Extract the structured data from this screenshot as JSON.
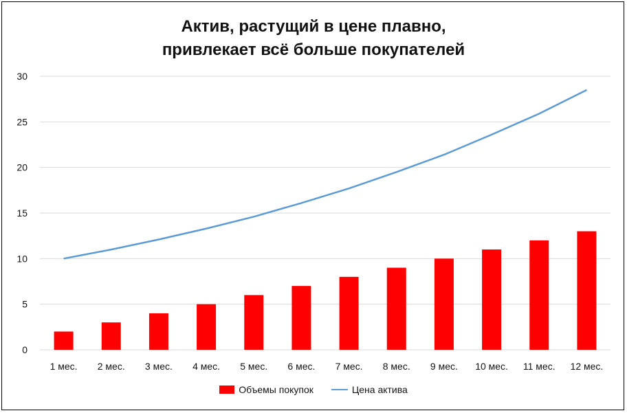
{
  "chart_data": {
    "type": "bar+line",
    "title": [
      "Актив, растущий в цене плавно,",
      "привлекает всё больше покупателей"
    ],
    "categories": [
      "1 мес.",
      "2 мес.",
      "3 мес.",
      "4 мес.",
      "5 мес.",
      "6 мес.",
      "7 мес.",
      "8 мес.",
      "9 мес.",
      "10 мес.",
      "11 мес.",
      "12 мес."
    ],
    "series": [
      {
        "name": "Объемы покупок",
        "type": "bar",
        "color": "#ff0000",
        "values": [
          2,
          3,
          4,
          5,
          6,
          7,
          8,
          9,
          10,
          11,
          12,
          13
        ]
      },
      {
        "name": "Цена актива",
        "type": "line",
        "color": "#5b9bd5",
        "values": [
          10.0,
          11.0,
          12.1,
          13.3,
          14.6,
          16.1,
          17.7,
          19.5,
          21.4,
          23.6,
          25.9,
          28.5
        ]
      }
    ],
    "ylim": [
      0,
      30
    ],
    "yticks": [
      "0",
      "5",
      "10",
      "15",
      "20",
      "25",
      "30"
    ],
    "xlabel": "",
    "ylabel": "",
    "grid": true,
    "legend_position": "bottom"
  }
}
